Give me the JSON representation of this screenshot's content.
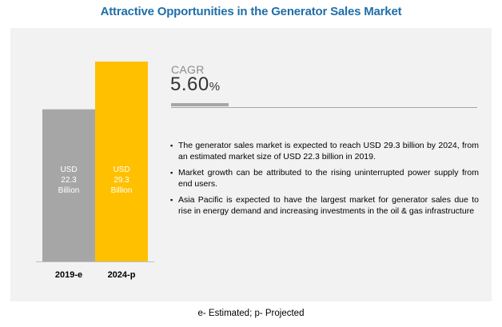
{
  "title": "Attractive Opportunities in the Generator Sales Market",
  "cagr": {
    "label": "CAGR",
    "value": "5.60",
    "unit": "%"
  },
  "bullets": [
    "The generator sales market is expected to reach USD 29.3 billion by 2024, from an estimated market size of USD 22.3 billion in 2019.",
    "Market growth can be attributed to the rising uninterrupted power supply from end users.",
    "Asia Pacific is expected to have the largest market for generator sales due to rise in energy demand and increasing investments in the oil & gas infrastructure"
  ],
  "footnote": "e- Estimated; p- Projected",
  "colors": {
    "title": "#1f6fa8",
    "panel": "#f2f2f2",
    "bar_2019": "#a6a6a6",
    "bar_2024": "#ffc000"
  },
  "chart_data": {
    "type": "bar",
    "categories": [
      "2019-e",
      "2024-p"
    ],
    "values": [
      22.3,
      29.3
    ],
    "unit": "USD Billion",
    "bar_labels": [
      [
        "USD",
        "22.3",
        "Billion"
      ],
      [
        "USD",
        "29.3",
        "Billion"
      ]
    ],
    "title": "",
    "xlabel": "",
    "ylabel": "",
    "ylim": [
      0,
      29.3
    ],
    "grid": false,
    "legend": "none"
  }
}
